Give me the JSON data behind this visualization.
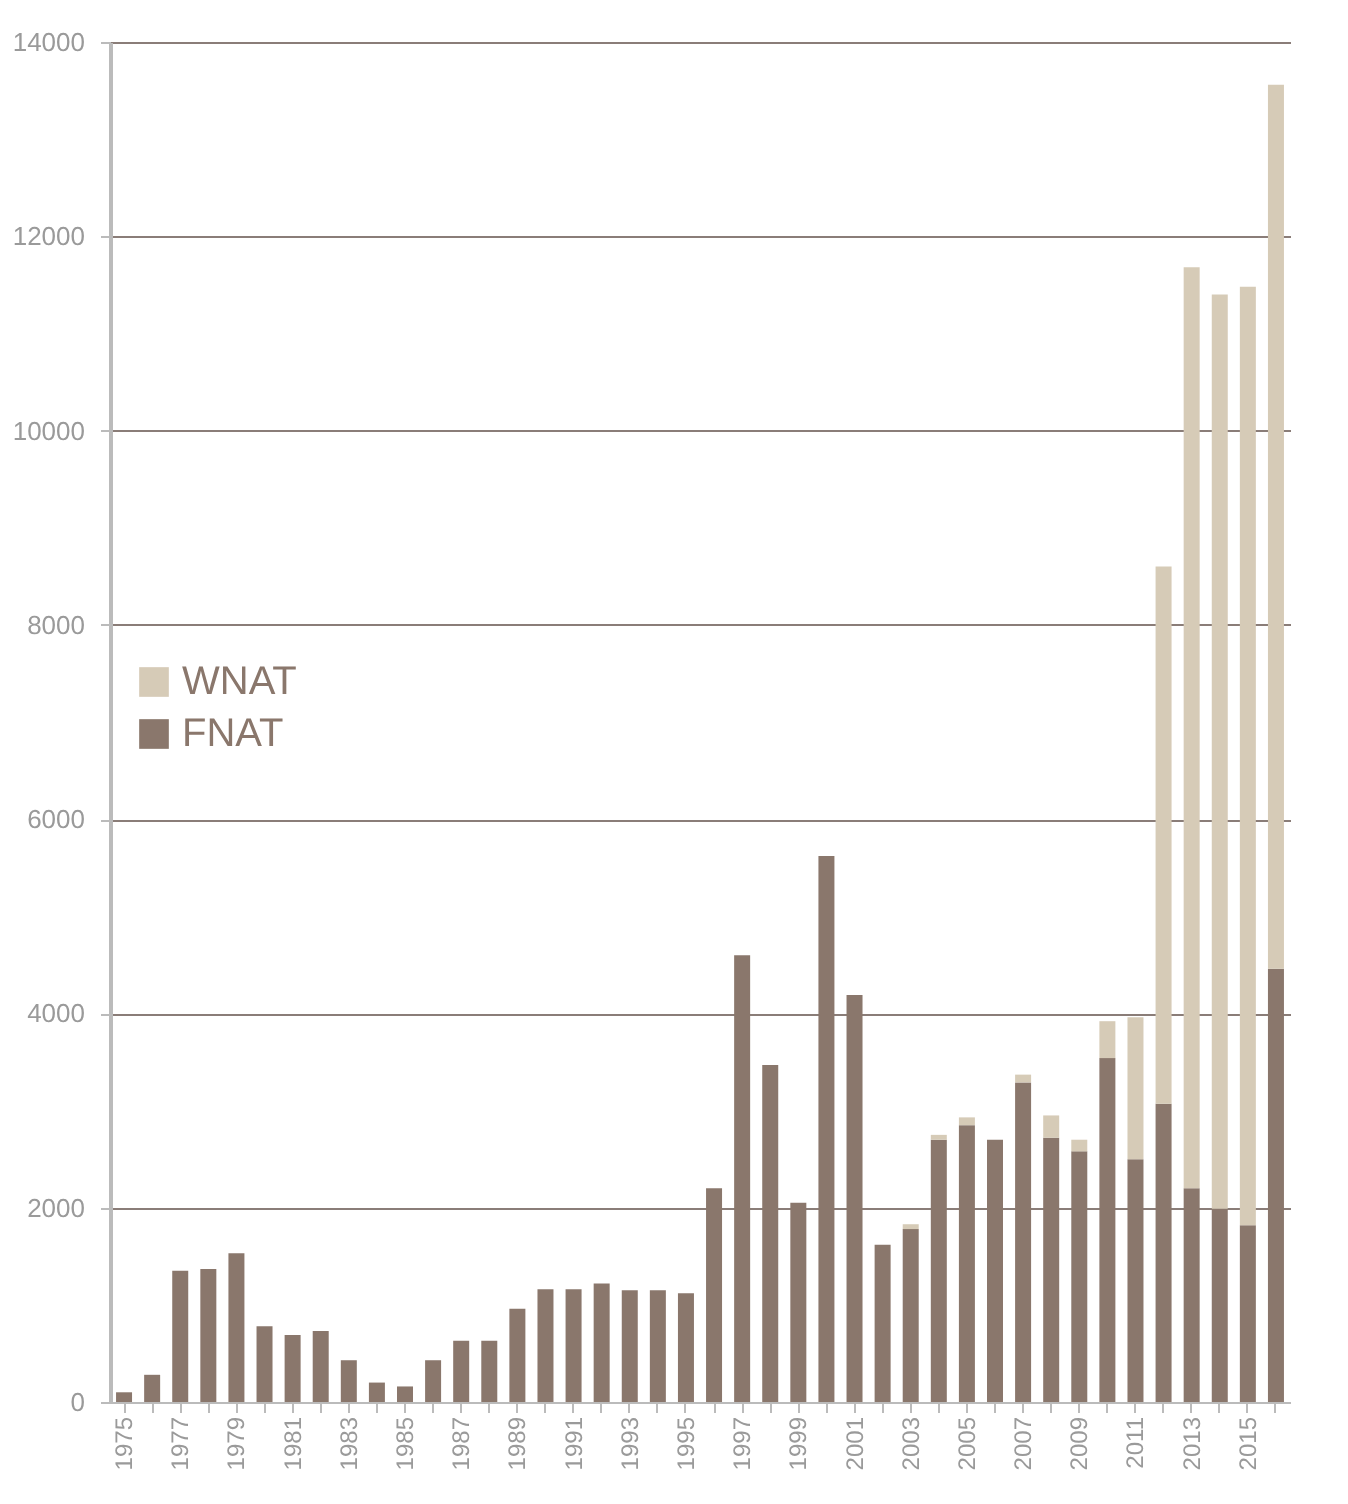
{
  "chart_data": {
    "type": "bar",
    "stacked": true,
    "categories": [
      "1975",
      null,
      "1977",
      null,
      "1979",
      null,
      "1981",
      null,
      "1983",
      null,
      "1985",
      null,
      "1987",
      null,
      "1989",
      null,
      "1991",
      null,
      "1993",
      null,
      "1995",
      null,
      "1997",
      null,
      "1999",
      null,
      "2001",
      null,
      "2003",
      null,
      "2005",
      null,
      "2007",
      null,
      "2009",
      null,
      "2011",
      null,
      "2013",
      null,
      "2015",
      null
    ],
    "series": [
      {
        "name": "FNAT",
        "color": "#8a776c",
        "values": [
          100,
          280,
          1350,
          1370,
          1530,
          780,
          690,
          730,
          430,
          200,
          160,
          430,
          630,
          630,
          960,
          1160,
          1160,
          1220,
          1150,
          1150,
          1120,
          2200,
          4600,
          3470,
          2050,
          5620,
          4190,
          1620,
          1780,
          2700,
          2850,
          2700,
          3290,
          2720,
          2580,
          3540,
          2500,
          3070,
          2200,
          1990,
          1820,
          4460
        ]
      },
      {
        "name": "WNAT",
        "color": "#d6cbb7",
        "values": [
          0,
          0,
          0,
          0,
          0,
          0,
          0,
          0,
          0,
          0,
          0,
          0,
          0,
          0,
          0,
          0,
          0,
          0,
          0,
          0,
          0,
          0,
          0,
          0,
          0,
          0,
          0,
          0,
          50,
          50,
          80,
          0,
          80,
          230,
          120,
          380,
          1460,
          5530,
          9480,
          9410,
          9660,
          9100
        ]
      }
    ],
    "ylim": [
      0,
      14000
    ],
    "yticks": [
      0,
      2000,
      4000,
      6000,
      8000,
      10000,
      12000,
      14000
    ],
    "grid": "y",
    "legend": "left"
  }
}
